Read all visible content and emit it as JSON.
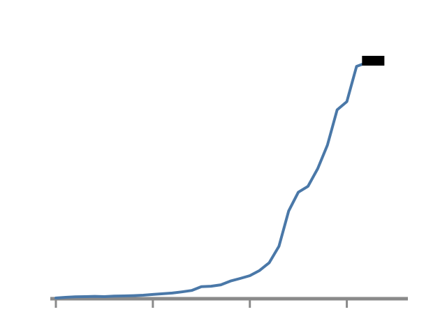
{
  "chart_data": {
    "type": "line",
    "title": "",
    "xlabel": "",
    "ylabel": "",
    "colors": {
      "line": "#4a78a8",
      "axis": "#8a8a8a",
      "tick_label": "#7a7a7a",
      "annotation": "#000000",
      "end_label_bg": "#000000"
    },
    "xlim": [
      0,
      35
    ],
    "ylim": [
      0,
      100
    ],
    "x_ticks": [
      {
        "value": 0,
        "label": ""
      },
      {
        "value": 10,
        "label": ""
      },
      {
        "value": 20,
        "label": ""
      },
      {
        "value": 30,
        "label": ""
      }
    ],
    "annotation": {
      "text": "",
      "x": 17,
      "y": 88
    },
    "end_label": {
      "text": ""
    },
    "series": [
      {
        "values": [
          {
            "x": 0,
            "y": 0.0
          },
          {
            "x": 1,
            "y": 0.3
          },
          {
            "x": 2,
            "y": 0.5
          },
          {
            "x": 3,
            "y": 0.6
          },
          {
            "x": 4,
            "y": 0.7
          },
          {
            "x": 5,
            "y": 0.6
          },
          {
            "x": 6,
            "y": 0.8
          },
          {
            "x": 7,
            "y": 0.9
          },
          {
            "x": 8,
            "y": 1.0
          },
          {
            "x": 9,
            "y": 1.2
          },
          {
            "x": 10,
            "y": 1.5
          },
          {
            "x": 11,
            "y": 1.8
          },
          {
            "x": 12,
            "y": 2.1
          },
          {
            "x": 13,
            "y": 2.6
          },
          {
            "x": 14,
            "y": 3.2
          },
          {
            "x": 15,
            "y": 4.8
          },
          {
            "x": 16,
            "y": 5.0
          },
          {
            "x": 17,
            "y": 5.6
          },
          {
            "x": 18,
            "y": 7.2
          },
          {
            "x": 19,
            "y": 8.3
          },
          {
            "x": 20,
            "y": 9.5
          },
          {
            "x": 21,
            "y": 11.7
          },
          {
            "x": 22,
            "y": 15.0
          },
          {
            "x": 23,
            "y": 22.0
          },
          {
            "x": 24,
            "y": 37.0
          },
          {
            "x": 25,
            "y": 45.0
          },
          {
            "x": 26,
            "y": 47.5
          },
          {
            "x": 27,
            "y": 55.0
          },
          {
            "x": 28,
            "y": 65.0
          },
          {
            "x": 29,
            "y": 80.0
          },
          {
            "x": 30,
            "y": 83.5
          },
          {
            "x": 31,
            "y": 98.5
          },
          {
            "x": 32,
            "y": 100.0
          }
        ]
      }
    ]
  }
}
